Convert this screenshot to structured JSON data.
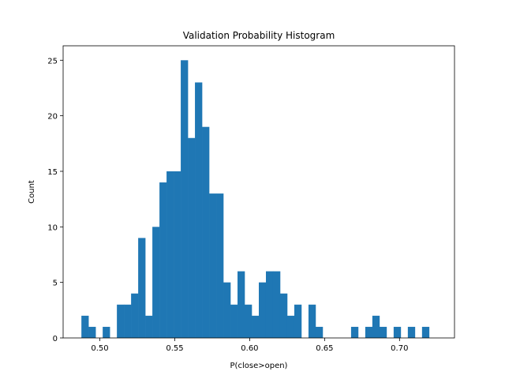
{
  "chart_data": {
    "type": "bar",
    "title": "Validation Probability Histogram",
    "xlabel": "P(close>open)",
    "ylabel": "Count",
    "xlim": [
      0.4755,
      0.7367
    ],
    "ylim": [
      0,
      26.3
    ],
    "bin_range": [
      0.4877,
      0.7245
    ],
    "bin_count": 50,
    "counts": [
      2,
      1,
      0,
      1,
      0,
      3,
      3,
      4,
      9,
      2,
      10,
      14,
      15,
      15,
      25,
      18,
      23,
      19,
      13,
      13,
      5,
      3,
      6,
      3,
      2,
      5,
      6,
      6,
      4,
      2,
      3,
      0,
      3,
      1,
      0,
      0,
      0,
      0,
      1,
      0,
      1,
      2,
      1,
      0,
      1,
      0,
      1,
      0,
      1,
      0
    ],
    "x_ticks": [
      {
        "value": 0.5,
        "label": "0.50"
      },
      {
        "value": 0.55,
        "label": "0.55"
      },
      {
        "value": 0.6,
        "label": "0.60"
      },
      {
        "value": 0.65,
        "label": "0.65"
      },
      {
        "value": 0.7,
        "label": "0.70"
      }
    ],
    "y_ticks": [
      {
        "value": 0,
        "label": "0"
      },
      {
        "value": 5,
        "label": "5"
      },
      {
        "value": 10,
        "label": "10"
      },
      {
        "value": 15,
        "label": "15"
      },
      {
        "value": 20,
        "label": "20"
      },
      {
        "value": 25,
        "label": "25"
      }
    ],
    "bar_color": "#1f77b4",
    "grid": false,
    "legend": false
  }
}
